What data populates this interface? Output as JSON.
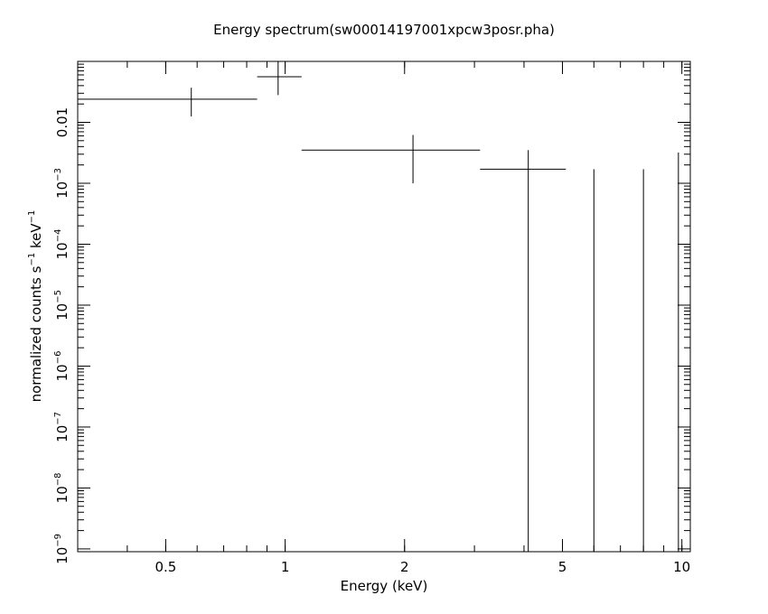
{
  "chart_data": {
    "type": "scatter",
    "title": "Energy spectrum(sw00014197001xpcw3posr.pha)",
    "xlabel": "Energy (keV)",
    "ylabel": {
      "base": "normalized counts s",
      "exp1": "−1",
      "mid": " keV",
      "exp2": "−1"
    },
    "xscale": "log",
    "yscale": "log",
    "xlim": [
      0.3,
      10.5
    ],
    "ylim": [
      9e-10,
      0.1
    ],
    "xticks": [
      {
        "value": 0.5,
        "label": "0.5"
      },
      {
        "value": 1,
        "label": "1"
      },
      {
        "value": 2,
        "label": "2"
      },
      {
        "value": 5,
        "label": "5"
      },
      {
        "value": 10,
        "label": "10"
      }
    ],
    "yticks": [
      {
        "value": 0.01,
        "label": "0.01",
        "base": "",
        "exp": ""
      },
      {
        "value": 0.001,
        "label": "",
        "base": "10",
        "exp": "−3"
      },
      {
        "value": 0.0001,
        "label": "",
        "base": "10",
        "exp": "−4"
      },
      {
        "value": 1e-05,
        "label": "",
        "base": "10",
        "exp": "−5"
      },
      {
        "value": 1e-06,
        "label": "",
        "base": "10",
        "exp": "−6"
      },
      {
        "value": 1e-07,
        "label": "",
        "base": "10",
        "exp": "−7"
      },
      {
        "value": 1e-08,
        "label": "",
        "base": "10",
        "exp": "−8"
      },
      {
        "value": 1e-09,
        "label": "",
        "base": "10",
        "exp": "−9"
      }
    ],
    "series": [
      {
        "points": [
          {
            "x": 0.58,
            "xlo": 0.3,
            "xhi": 0.85,
            "y": 0.024,
            "ylo": 0.0125,
            "yhi": 0.037
          },
          {
            "x": 0.96,
            "xlo": 0.85,
            "xhi": 1.1,
            "y": 0.056,
            "ylo": 0.028,
            "yhi": 0.1
          },
          {
            "x": 2.1,
            "xlo": 1.1,
            "xhi": 3.1,
            "y": 0.0035,
            "ylo": 0.001,
            "yhi": 0.0062
          },
          {
            "x": 4.1,
            "xlo": 3.1,
            "xhi": 5.1,
            "y": 0.0017,
            "ylo": 9e-10,
            "yhi": 0.0035
          },
          {
            "x": 6.0,
            "xlo": 6.0,
            "xhi": 6.0,
            "y": 0.0017,
            "ylo": 9e-10,
            "yhi": 0.0017
          },
          {
            "x": 8.0,
            "xlo": 8.0,
            "xhi": 8.0,
            "y": 0.0017,
            "ylo": 9e-10,
            "yhi": 0.0017
          },
          {
            "x": 9.8,
            "xlo": 9.8,
            "xhi": 9.8,
            "y": 0.0032,
            "ylo": 9e-10,
            "yhi": 0.0032
          }
        ]
      }
    ],
    "grid": false,
    "style": {
      "axis_color": "#000000",
      "data_color": "#000000",
      "background": "#ffffff"
    }
  }
}
